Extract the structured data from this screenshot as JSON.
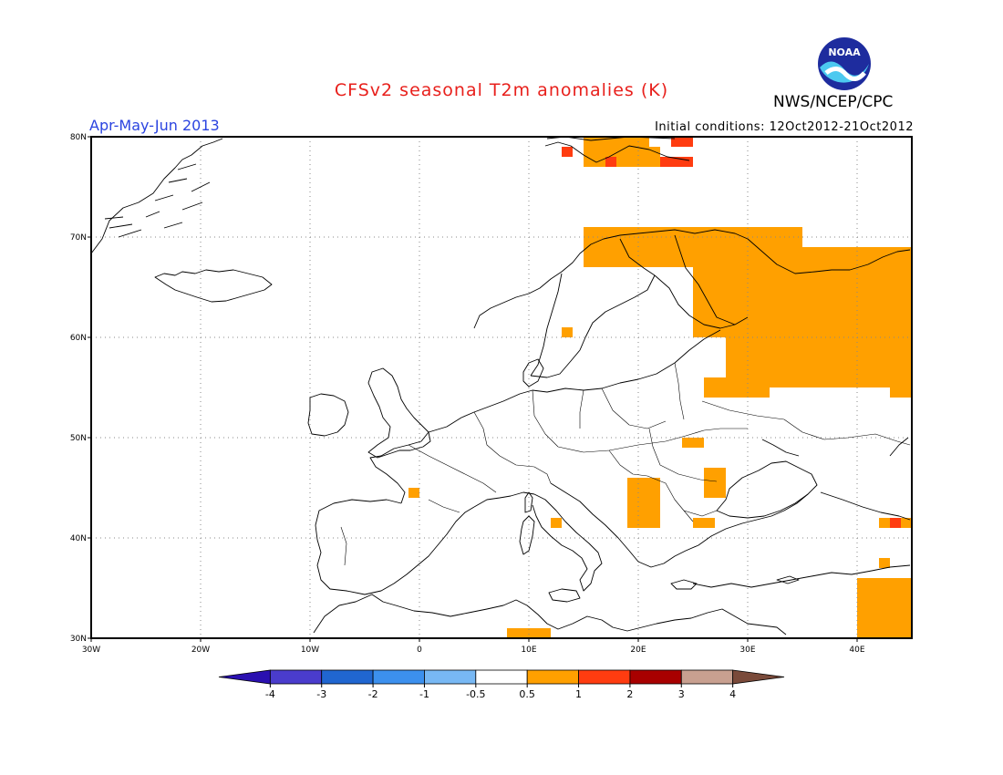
{
  "header": {
    "title": "CFSv2 seasonal T2m anomalies (K)",
    "period": "Apr-May-Jun 2013",
    "agency": "NWS/NCEP/CPC",
    "initial_conditions": "Initial conditions: 12Oct2012-21Oct2012",
    "logo_text": "NOAA"
  },
  "map": {
    "lon_range": [
      -30,
      45
    ],
    "lat_range": [
      30,
      80
    ],
    "lon_ticks": [
      {
        "value": -30,
        "label": "30W"
      },
      {
        "value": -20,
        "label": "20W"
      },
      {
        "value": -10,
        "label": "10W"
      },
      {
        "value": 0,
        "label": "0"
      },
      {
        "value": 10,
        "label": "10E"
      },
      {
        "value": 20,
        "label": "20E"
      },
      {
        "value": 30,
        "label": "30E"
      },
      {
        "value": 40,
        "label": "40E"
      }
    ],
    "lat_ticks": [
      {
        "value": 30,
        "label": "30N"
      },
      {
        "value": 40,
        "label": "40N"
      },
      {
        "value": 50,
        "label": "50N"
      },
      {
        "value": 60,
        "label": "60N"
      },
      {
        "value": 70,
        "label": "70N"
      },
      {
        "value": 80,
        "label": "80N"
      }
    ],
    "grid": true
  },
  "colorbar": {
    "bins": [
      {
        "color": "#2a10b0"
      },
      {
        "color": "#4a3ccc"
      },
      {
        "color": "#2066d0"
      },
      {
        "color": "#3c90ee"
      },
      {
        "color": "#78b8f4"
      },
      {
        "color": "#ffffff"
      },
      {
        "color": "#ffa000"
      },
      {
        "color": "#ff3c10"
      },
      {
        "color": "#a80000"
      },
      {
        "color": "#c8a090"
      },
      {
        "color": "#7a4a3a"
      }
    ],
    "labels": [
      "-4",
      "-3",
      "-2",
      "-1",
      "-0.5",
      "0.5",
      "1",
      "2",
      "3",
      "4"
    ]
  },
  "chart_data": {
    "type": "heatmap",
    "title": "CFSv2 seasonal T2m anomalies (K)",
    "subtitle": "Apr-May-Jun 2013",
    "xlim": [
      -30,
      45
    ],
    "ylim": [
      30,
      80
    ],
    "anomaly_cells": [
      {
        "lon": [
          15,
          21
        ],
        "lat": [
          79,
          80
        ],
        "value": 0.7
      },
      {
        "lon": [
          23,
          25
        ],
        "lat": [
          79,
          80
        ],
        "value": 1.3
      },
      {
        "lon": [
          13,
          14
        ],
        "lat": [
          78,
          79
        ],
        "value": 1.3
      },
      {
        "lon": [
          15,
          22
        ],
        "lat": [
          77,
          79
        ],
        "value": 0.7
      },
      {
        "lon": [
          17,
          18
        ],
        "lat": [
          77,
          78
        ],
        "value": 1.3
      },
      {
        "lon": [
          22,
          25
        ],
        "lat": [
          77,
          78
        ],
        "value": 1.3
      },
      {
        "lon": [
          15,
          35
        ],
        "lat": [
          67,
          71
        ],
        "value": 0.7
      },
      {
        "lon": [
          25,
          45
        ],
        "lat": [
          60,
          69
        ],
        "value": 0.7
      },
      {
        "lon": [
          28,
          45
        ],
        "lat": [
          55,
          62
        ],
        "value": 0.7
      },
      {
        "lon": [
          43,
          45
        ],
        "lat": [
          54,
          56
        ],
        "value": 0.7
      },
      {
        "lon": [
          26,
          32
        ],
        "lat": [
          54,
          56
        ],
        "value": 0.7
      },
      {
        "lon": [
          13,
          14
        ],
        "lat": [
          60,
          61
        ],
        "value": 0.7
      },
      {
        "lon": [
          24,
          26
        ],
        "lat": [
          49,
          50
        ],
        "value": 0.7
      },
      {
        "lon": [
          19,
          22
        ],
        "lat": [
          43,
          46
        ],
        "value": 0.7
      },
      {
        "lon": [
          26,
          28
        ],
        "lat": [
          44,
          47
        ],
        "value": 0.7
      },
      {
        "lon": [
          19,
          22
        ],
        "lat": [
          41,
          43
        ],
        "value": 0.7
      },
      {
        "lon": [
          25,
          27
        ],
        "lat": [
          41,
          42
        ],
        "value": 0.7
      },
      {
        "lon": [
          12,
          13
        ],
        "lat": [
          41,
          42
        ],
        "value": 0.7
      },
      {
        "lon": [
          -1,
          0
        ],
        "lat": [
          44,
          45
        ],
        "value": 0.7
      },
      {
        "lon": [
          42,
          45
        ],
        "lat": [
          41,
          42
        ],
        "value": 0.7
      },
      {
        "lon": [
          43,
          44
        ],
        "lat": [
          41,
          42
        ],
        "value": 1.3
      },
      {
        "lon": [
          42,
          43
        ],
        "lat": [
          37,
          38
        ],
        "value": 0.7
      },
      {
        "lon": [
          40,
          45
        ],
        "lat": [
          30,
          36
        ],
        "value": 0.7
      },
      {
        "lon": [
          8,
          12
        ],
        "lat": [
          30,
          31
        ],
        "value": 0.7
      }
    ]
  }
}
